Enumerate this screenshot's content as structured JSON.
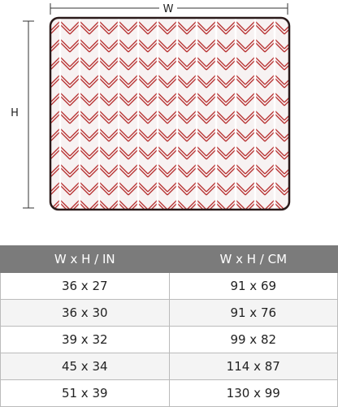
{
  "diagram": {
    "width_label": "W",
    "height_label": "H"
  },
  "table": {
    "header": [
      "W x H / IN",
      "W x H / CM"
    ],
    "rows": [
      [
        "36 x 27",
        "91 x 69"
      ],
      [
        "36 x 30",
        "91 x 76"
      ],
      [
        "39 x 32",
        "99 x 82"
      ],
      [
        "45 x 34",
        "114 x 87"
      ],
      [
        "51 x 39",
        "130 x 99"
      ]
    ]
  }
}
